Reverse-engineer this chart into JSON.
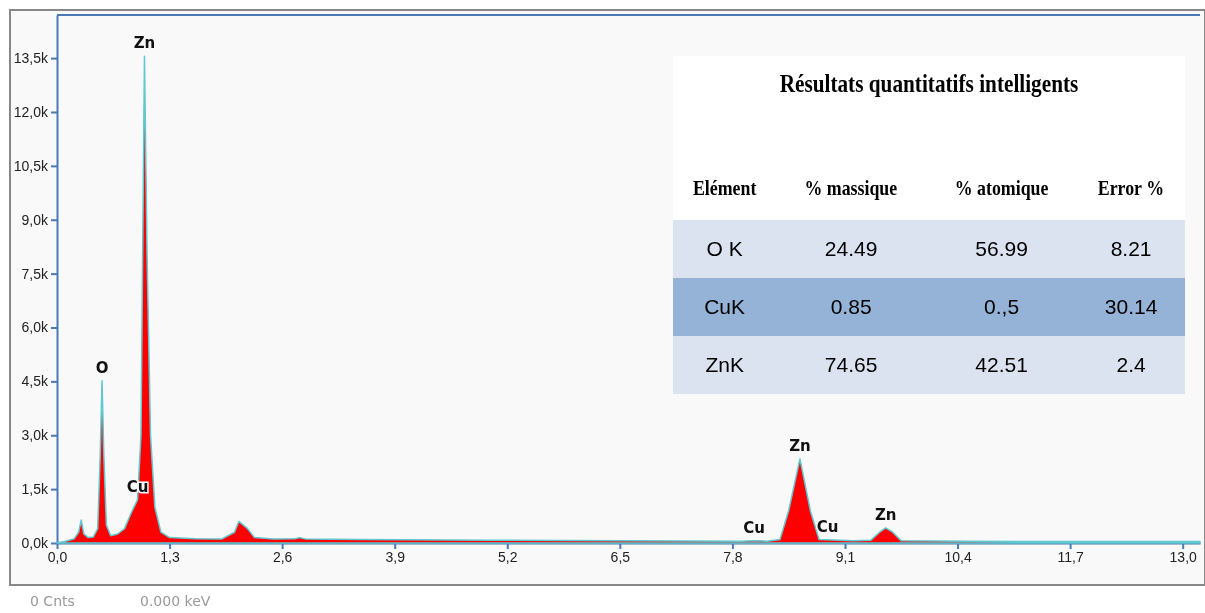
{
  "chart_data": {
    "type": "area",
    "x": [
      0,
      0.1,
      0.2,
      0.25,
      0.28,
      0.31,
      0.36,
      0.42,
      0.47,
      0.5,
      0.52,
      0.54,
      0.57,
      0.62,
      0.7,
      0.78,
      0.85,
      0.93,
      0.97,
      1.01,
      1.04,
      1.08,
      1.13,
      1.2,
      1.3,
      1.6,
      1.9,
      2.05,
      2.1,
      2.2,
      2.28,
      2.5,
      2.75,
      2.8,
      2.87,
      3.5,
      5,
      6.5,
      7.9,
      8.05,
      8.2,
      8.35,
      8.45,
      8.58,
      8.7,
      8.8,
      9.2,
      9.4,
      9.5,
      9.57,
      9.65,
      9.75,
      10.5,
      11.7,
      13.2
    ],
    "series": [
      {
        "color": "#ff0000",
        "values": [
          0,
          50,
          120,
          300,
          640,
          250,
          150,
          170,
          400,
          2500,
          4520,
          2500,
          500,
          200,
          250,
          400,
          800,
          1200,
          3000,
          13550,
          8000,
          3000,
          1000,
          300,
          150,
          120,
          110,
          300,
          600,
          400,
          150,
          110,
          120,
          150,
          110,
          100,
          80,
          60,
          50,
          60,
          50,
          100,
          900,
          2340,
          900,
          100,
          60,
          80,
          300,
          420,
          300,
          60,
          50,
          40,
          40
        ]
      }
    ],
    "xlim": [
      0,
      13.2
    ],
    "ylim": [
      0,
      14700
    ],
    "xticks": [
      {
        "value": 0,
        "label": "0,0"
      },
      {
        "value": 1.3,
        "label": "1,3"
      },
      {
        "value": 2.6,
        "label": "2,6"
      },
      {
        "value": 3.9,
        "label": "3,9"
      },
      {
        "value": 5.2,
        "label": "5,2"
      },
      {
        "value": 6.5,
        "label": "6,5"
      },
      {
        "value": 7.8,
        "label": "7,8"
      },
      {
        "value": 9.1,
        "label": "9,1"
      },
      {
        "value": 10.4,
        "label": "10,4"
      },
      {
        "value": 11.7,
        "label": "11,7"
      },
      {
        "value": 13.0,
        "label": "13,0"
      }
    ],
    "yticks": [
      {
        "value": 0,
        "label": "0,0k"
      },
      {
        "value": 1500,
        "label": "1,5k"
      },
      {
        "value": 3000,
        "label": "3,0k"
      },
      {
        "value": 4500,
        "label": "4,5k"
      },
      {
        "value": 6000,
        "label": "6,0k"
      },
      {
        "value": 7500,
        "label": "7,5k"
      },
      {
        "value": 9000,
        "label": "9,0k"
      },
      {
        "value": 10500,
        "label": "10,5k"
      },
      {
        "value": 12000,
        "label": "12,0k"
      },
      {
        "value": 13500,
        "label": "13,5k"
      }
    ],
    "grid": false,
    "annotations": [
      {
        "text": "Zn",
        "x": 1.01,
        "y": 13550
      },
      {
        "text": "O",
        "x": 0.52,
        "y": 4520
      },
      {
        "text": "Cu",
        "x": 0.93,
        "y": 1200
      },
      {
        "text": "Cu",
        "x": 8.05,
        "y": 60
      },
      {
        "text": "Zn",
        "x": 8.58,
        "y": 2340
      },
      {
        "text": "Cu",
        "x": 8.9,
        "y": 80
      },
      {
        "text": "Zn",
        "x": 9.57,
        "y": 420
      },
      "Résultats  quantitatifs intelligents",
      "Elément",
      "% massique",
      "% atomique",
      "Error %",
      "O K",
      "24.49",
      "56.99",
      "8.21",
      "CuK",
      "0.85",
      "0.,5",
      "30.14",
      "ZnK",
      "74.65",
      "42.51",
      "2.4",
      "0 Cnts",
      "0.000 keV"
    ]
  }
}
